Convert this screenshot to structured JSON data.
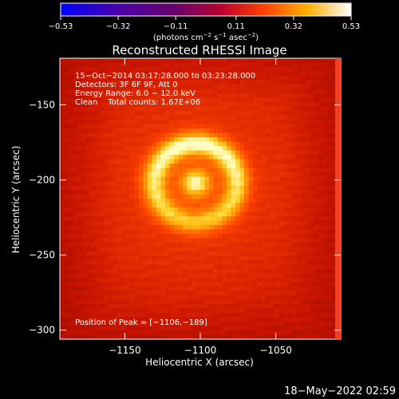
{
  "chart_data": {
    "type": "heatmap",
    "title": "Reconstructed RHESSI Image",
    "xlabel": "Heliocentric X (arcsec)",
    "ylabel": "Heliocentric Y (arcsec)",
    "xlim": [
      -1193,
      -1007
    ],
    "ylim": [
      -306,
      -119
    ],
    "x_ticks": [
      -1150,
      -1100,
      -1050
    ],
    "y_ticks": [
      -150,
      -200,
      -250,
      -300
    ],
    "x_tick_labels": [
      "−1150",
      "−1100",
      "−1050"
    ],
    "y_tick_labels": [
      "−150",
      "−200",
      "−250",
      "−300"
    ],
    "colorbar": {
      "range": [
        -0.53,
        0.53
      ],
      "tick_values": [
        -0.53,
        -0.32,
        -0.11,
        0.11,
        0.32,
        0.53
      ],
      "tick_labels": [
        "−0.53",
        "−0.32",
        "−0.11",
        "0.11",
        "0.32",
        "0.53"
      ],
      "unit_label": "(photons cm",
      "unit_exp1": "−2",
      "unit_mid": " s",
      "unit_exp2": "−1",
      "unit_mid2": " asec",
      "unit_exp3": "−2",
      "unit_end": ")"
    },
    "info_lines": [
      "15−Oct−2014 03:17:28.000 to 03:23:28.000",
      "Detectors: 3F 6F 9F, Att 0",
      "Energy Range: 6.0 − 12.0 keV",
      "Clean    Total counts: 1.67E+06"
    ],
    "peak_label": "Position of Peak = [−1106,−189]",
    "peak": {
      "x": -1106,
      "y": -189
    },
    "ring_center": {
      "x": -1103,
      "y": -202
    },
    "grid": false
  },
  "timestamp": "18−May−2022 02:59"
}
